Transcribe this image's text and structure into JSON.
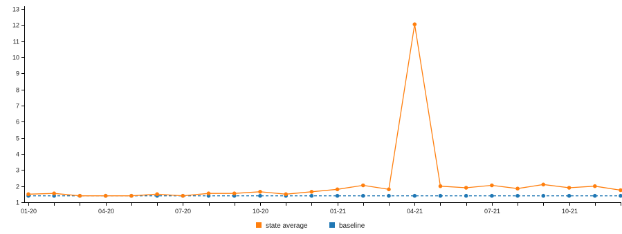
{
  "colors": {
    "state_average": "#ff7f0e",
    "baseline": "#1f77b4"
  },
  "chart_data": {
    "type": "line",
    "title": "",
    "xlabel": "",
    "ylabel": "",
    "ylim": [
      1,
      13
    ],
    "y_ticks": [
      1,
      2,
      3,
      4,
      5,
      6,
      7,
      8,
      9,
      10,
      11,
      12,
      13
    ],
    "x": [
      "01-20",
      "02-20",
      "03-20",
      "04-20",
      "05-20",
      "06-20",
      "07-20",
      "08-20",
      "09-20",
      "10-20",
      "11-20",
      "12-20",
      "01-21",
      "02-21",
      "03-21",
      "04-21",
      "05-21",
      "06-21",
      "07-21",
      "08-21",
      "09-21",
      "10-21",
      "11-21",
      "12-21"
    ],
    "x_tick_labels": [
      "01-20",
      "",
      "",
      "04-20",
      "",
      "",
      "07-20",
      "",
      "",
      "10-20",
      "",
      "",
      "01-21",
      "",
      "",
      "04-21",
      "",
      "",
      "07-21",
      "",
      "",
      "10-21",
      "",
      ""
    ],
    "legend": {
      "position": "bottom",
      "items": [
        "state average",
        "baseline"
      ]
    },
    "grid": false,
    "series": [
      {
        "name": "state average",
        "style": "solid",
        "values": [
          1.5,
          1.55,
          1.4,
          1.4,
          1.4,
          1.5,
          1.4,
          1.55,
          1.55,
          1.65,
          1.5,
          1.65,
          1.8,
          2.05,
          1.8,
          12.05,
          2.0,
          1.9,
          2.05,
          1.85,
          2.1,
          1.9,
          2.0,
          1.75
        ]
      },
      {
        "name": "baseline",
        "style": "dashed",
        "values": [
          1.4,
          1.4,
          1.4,
          1.4,
          1.4,
          1.4,
          1.4,
          1.4,
          1.4,
          1.4,
          1.4,
          1.4,
          1.4,
          1.4,
          1.4,
          1.4,
          1.4,
          1.4,
          1.4,
          1.4,
          1.4,
          1.4,
          1.4,
          1.4
        ]
      }
    ]
  }
}
